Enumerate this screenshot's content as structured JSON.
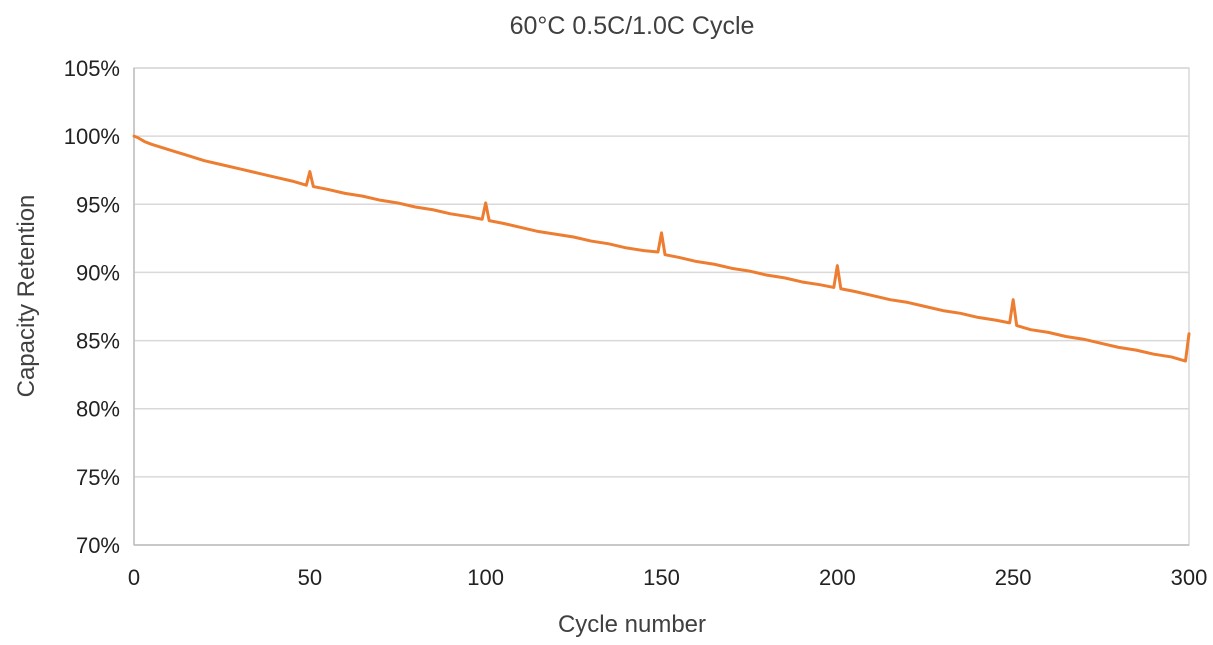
{
  "chart_data": {
    "type": "line",
    "title": "60°C 0.5C/1.0C Cycle",
    "xlabel": "Cycle number",
    "ylabel": "Capacity Retention",
    "xlim": [
      0,
      300
    ],
    "ylim": [
      70,
      105
    ],
    "x_ticks": [
      0,
      50,
      100,
      150,
      200,
      250,
      300
    ],
    "x_tick_labels": [
      "0",
      "50",
      "100",
      "150",
      "200",
      "250",
      "300"
    ],
    "y_ticks": [
      70,
      75,
      80,
      85,
      90,
      95,
      100,
      105
    ],
    "y_tick_labels": [
      "70%",
      "75%",
      "80%",
      "85%",
      "90%",
      "95%",
      "100%",
      "105%"
    ],
    "grid": "horizontal",
    "legend": "none",
    "colors": {
      "series": "#ED7D31"
    },
    "series": [
      {
        "x": [
          0,
          1,
          3,
          5,
          10,
          15,
          20,
          25,
          30,
          35,
          40,
          45,
          49,
          50,
          51,
          55,
          60,
          65,
          70,
          75,
          80,
          85,
          90,
          95,
          99,
          100,
          101,
          105,
          110,
          115,
          120,
          125,
          130,
          135,
          140,
          145,
          149,
          150,
          151,
          155,
          160,
          165,
          170,
          175,
          180,
          185,
          190,
          195,
          199,
          200,
          201,
          205,
          210,
          215,
          220,
          225,
          230,
          235,
          240,
          245,
          249,
          250,
          251,
          255,
          260,
          265,
          270,
          275,
          280,
          285,
          290,
          295,
          299,
          300
        ],
        "y": [
          100.0,
          99.9,
          99.6,
          99.4,
          99.0,
          98.6,
          98.2,
          97.9,
          97.6,
          97.3,
          97.0,
          96.7,
          96.4,
          97.4,
          96.3,
          96.1,
          95.8,
          95.6,
          95.3,
          95.1,
          94.8,
          94.6,
          94.3,
          94.1,
          93.9,
          95.1,
          93.8,
          93.6,
          93.3,
          93.0,
          92.8,
          92.6,
          92.3,
          92.1,
          91.8,
          91.6,
          91.5,
          92.9,
          91.3,
          91.1,
          90.8,
          90.6,
          90.3,
          90.1,
          89.8,
          89.6,
          89.3,
          89.1,
          88.9,
          90.5,
          88.8,
          88.6,
          88.3,
          88.0,
          87.8,
          87.5,
          87.2,
          87.0,
          86.7,
          86.5,
          86.3,
          88.0,
          86.1,
          85.8,
          85.6,
          85.3,
          85.1,
          84.8,
          84.5,
          84.3,
          84.0,
          83.8,
          83.5,
          85.5
        ]
      }
    ]
  }
}
